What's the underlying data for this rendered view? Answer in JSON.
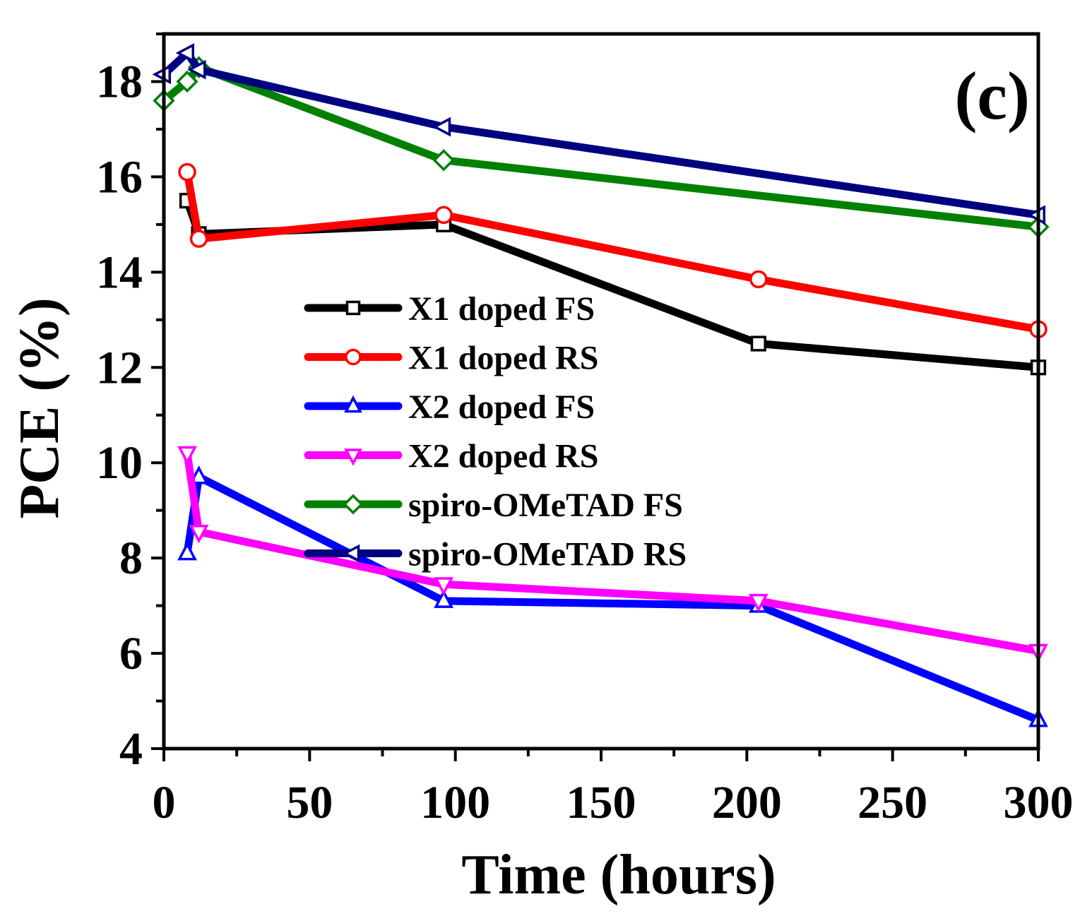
{
  "chart_data": {
    "type": "line",
    "title": "",
    "panel_label": "(c)",
    "xlabel": "Time (hours)",
    "ylabel": "PCE (%)",
    "xlim": [
      0,
      300
    ],
    "ylim": [
      4,
      19
    ],
    "xticks": [
      0,
      50,
      100,
      150,
      200,
      250,
      300
    ],
    "xtick_labels": [
      "0",
      "50",
      "100",
      "150",
      "200",
      "250",
      "300"
    ],
    "yticks": [
      4,
      6,
      8,
      10,
      12,
      14,
      16,
      18
    ],
    "ytick_labels": [
      "4",
      "6",
      "8",
      "10",
      "12",
      "14",
      "16",
      "18"
    ],
    "grid": false,
    "legend_position": "center",
    "series": [
      {
        "name": "X1 doped FS",
        "color": "#000000",
        "marker": "square",
        "x": [
          8,
          12,
          96,
          204,
          300
        ],
        "y": [
          15.5,
          14.8,
          15.0,
          12.5,
          12.0
        ]
      },
      {
        "name": "X1 doped RS",
        "color": "#ff0000",
        "marker": "circle",
        "x": [
          8,
          12,
          96,
          204,
          300
        ],
        "y": [
          16.1,
          14.7,
          15.2,
          13.85,
          12.8
        ]
      },
      {
        "name": "X2 doped FS",
        "color": "#0000ff",
        "marker": "triangle-up",
        "x": [
          8,
          12,
          96,
          204,
          300
        ],
        "y": [
          8.1,
          9.7,
          7.1,
          7.0,
          4.6
        ]
      },
      {
        "name": "X2 doped RS",
        "color": "#ff00ff",
        "marker": "triangle-down",
        "x": [
          8,
          12,
          96,
          204,
          300
        ],
        "y": [
          10.2,
          8.55,
          7.45,
          7.1,
          6.05
        ]
      },
      {
        "name": "spiro-OMeTAD FS",
        "color": "#008000",
        "marker": "diamond",
        "x": [
          0,
          8,
          12,
          96,
          300
        ],
        "y": [
          17.6,
          18.0,
          18.3,
          16.35,
          14.95
        ]
      },
      {
        "name": "spiro-OMeTAD RS",
        "color": "#000080",
        "marker": "triangle-left",
        "x": [
          0,
          8,
          12,
          96,
          300
        ],
        "y": [
          18.15,
          18.6,
          18.25,
          17.05,
          15.2
        ]
      }
    ]
  }
}
